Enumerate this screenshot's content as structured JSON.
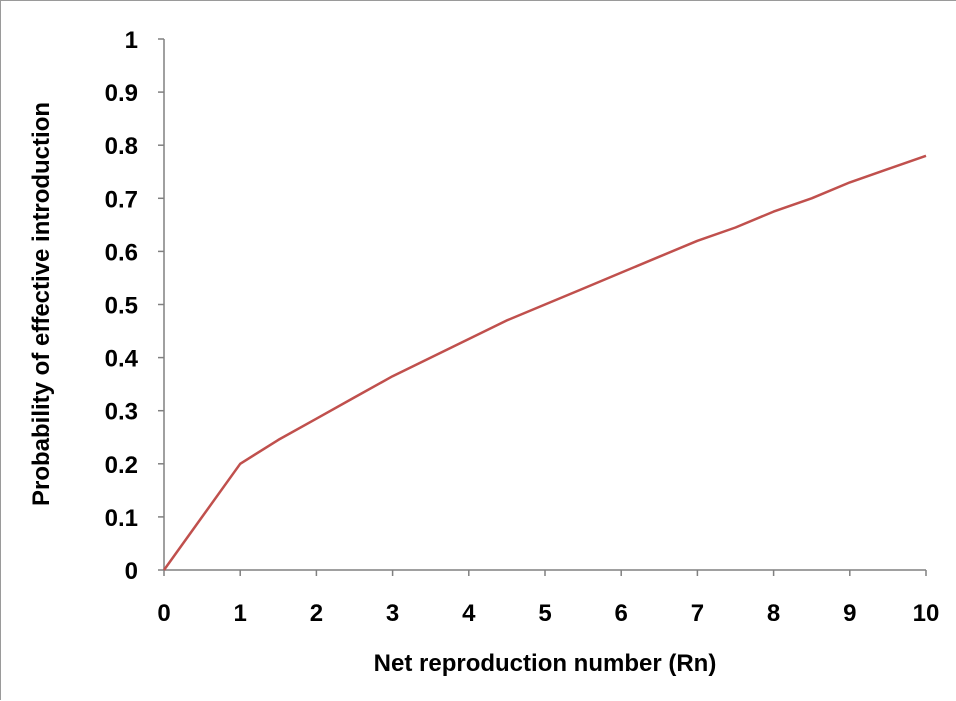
{
  "chart_data": {
    "type": "line",
    "title": "",
    "xlabel": "Net reproduction number (Rn)",
    "ylabel": "Probability of effective introduction",
    "xlim": [
      0,
      10
    ],
    "ylim": [
      0,
      1
    ],
    "x_ticks": [
      "0",
      "1",
      "2",
      "3",
      "4",
      "5",
      "6",
      "7",
      "8",
      "9",
      "10"
    ],
    "y_ticks": [
      "0",
      "0.1",
      "0.2",
      "0.3",
      "0.4",
      "0.5",
      "0.6",
      "0.7",
      "0.8",
      "0.9",
      "1"
    ],
    "grid": false,
    "legend": "none",
    "series": [
      {
        "color": "#c0504d",
        "x": [
          0,
          0.5,
          1,
          1.5,
          2,
          2.5,
          3,
          3.5,
          4,
          4.5,
          5,
          5.5,
          6,
          6.5,
          7,
          7.5,
          8,
          8.5,
          9,
          9.5,
          10
        ],
        "y": [
          0,
          0.1,
          0.2,
          0.245,
          0.285,
          0.325,
          0.365,
          0.4,
          0.435,
          0.47,
          0.5,
          0.53,
          0.56,
          0.59,
          0.62,
          0.645,
          0.675,
          0.7,
          0.73,
          0.755,
          0.78
        ]
      }
    ]
  }
}
